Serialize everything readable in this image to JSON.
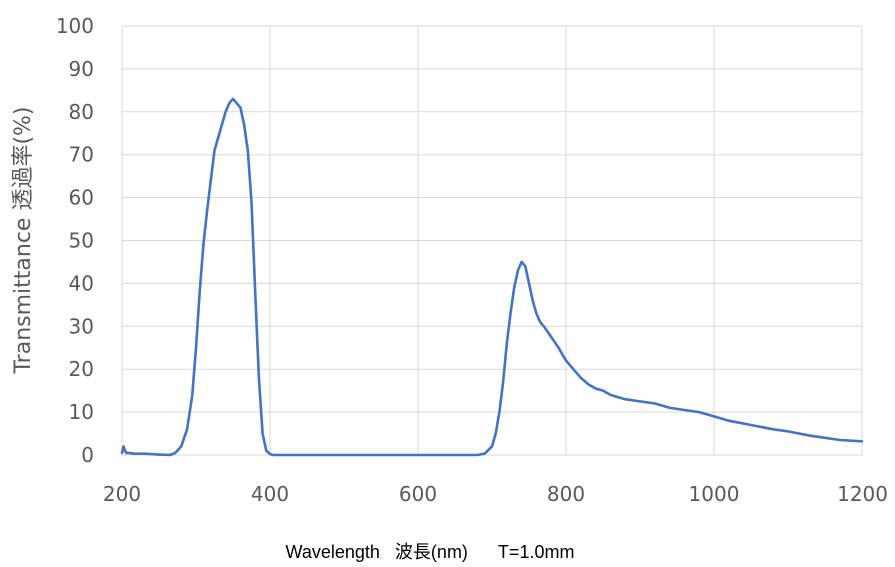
{
  "chart_data": {
    "type": "line",
    "title": "",
    "xlabel": "Wavelength   波長(nm)      T=1.0mm",
    "ylabel": "Transmittance 透過率(%)",
    "xlim": [
      200,
      1200
    ],
    "ylim": [
      0,
      100
    ],
    "x_ticks": [
      "200",
      "400",
      "600",
      "800",
      "1000",
      "1200"
    ],
    "y_ticks": [
      "0",
      "10",
      "20",
      "30",
      "40",
      "50",
      "60",
      "70",
      "80",
      "90",
      "100"
    ],
    "grid": true,
    "legend": "none",
    "series": [
      {
        "color": "#4472c4",
        "x": [
          200,
          202,
          204,
          206,
          210,
          215,
          220,
          230,
          250,
          265,
          272,
          280,
          288,
          295,
          300,
          305,
          310,
          315,
          320,
          325,
          330,
          335,
          340,
          345,
          350,
          355,
          360,
          365,
          370,
          375,
          380,
          385,
          390,
          395,
          400,
          405,
          410,
          420,
          450,
          500,
          550,
          600,
          650,
          680,
          690,
          700,
          705,
          710,
          715,
          720,
          725,
          730,
          735,
          740,
          745,
          750,
          755,
          760,
          765,
          770,
          780,
          790,
          800,
          810,
          820,
          830,
          840,
          850,
          860,
          870,
          880,
          900,
          920,
          940,
          960,
          980,
          1000,
          1020,
          1050,
          1080,
          1100,
          1130,
          1150,
          1170,
          1200
        ],
        "y": [
          0.5,
          2,
          1,
          0.5,
          0.5,
          0.3,
          0.3,
          0.3,
          0.1,
          0,
          0.5,
          2,
          6,
          14,
          25,
          38,
          49,
          57,
          64,
          71,
          74,
          77,
          80,
          82,
          83,
          82,
          81,
          77,
          71,
          59,
          38,
          18,
          5,
          1,
          0.2,
          0,
          0,
          0,
          0,
          0,
          0,
          0,
          0,
          0,
          0.3,
          2,
          5,
          10,
          17,
          26,
          33,
          39,
          43,
          45,
          44,
          40,
          36,
          33,
          31,
          30,
          27.5,
          25,
          22,
          20,
          18,
          16.5,
          15.5,
          15,
          14,
          13.5,
          13,
          12.5,
          12,
          11,
          10.5,
          10,
          9,
          8,
          7,
          6,
          5.5,
          4.5,
          4,
          3.5,
          3.2
        ]
      }
    ]
  }
}
